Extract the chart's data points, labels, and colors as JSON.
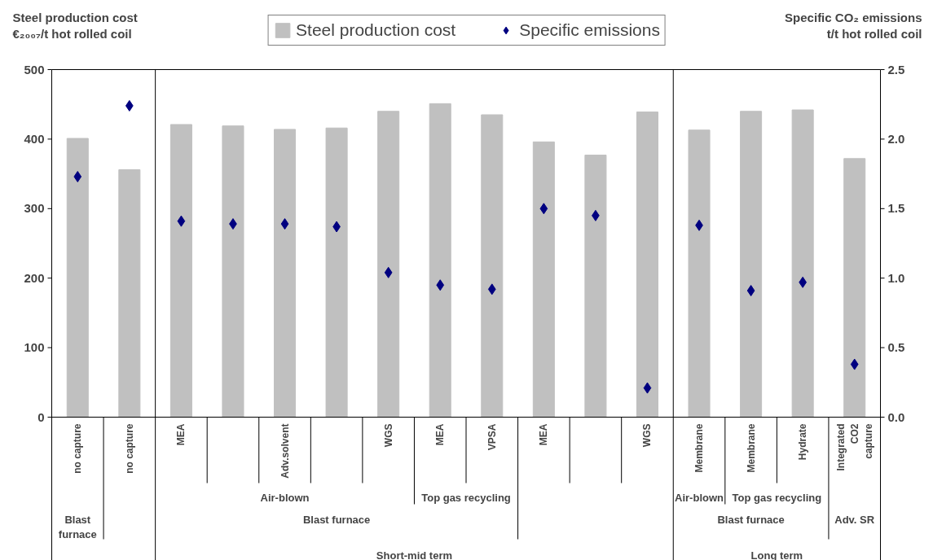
{
  "chart_data": {
    "type": "bar",
    "ylabel": "Steel production cost\n€₂₀₀₇/t hot rolled coil",
    "y2label": "Specific CO₂ emissions\nt/t hot rolled coil",
    "categories": [
      "no capture",
      "no capture",
      "MEA",
      null,
      "Adv.solvent",
      null,
      "WGS",
      "MEA",
      "VPSA",
      "MEA",
      null,
      "WGS",
      "Membrane",
      "Membrane",
      "Hydrate",
      "Integrated CO2 capture"
    ],
    "series": [
      {
        "name": "Steel production cost",
        "color": "#c0c0c0",
        "values": [
          401,
          356,
          421,
          419,
          414,
          416,
          440,
          451,
          435,
          396,
          377,
          439,
          413,
          440,
          442,
          372
        ]
      },
      {
        "name": "Specific emissions",
        "type": "scatter",
        "axis": "y2",
        "color": "#000080",
        "values": [
          1.73,
          2.24,
          1.41,
          1.39,
          1.39,
          1.37,
          1.04,
          0.95,
          0.92,
          1.5,
          1.45,
          0.21,
          1.38,
          0.91,
          0.97,
          0.38
        ]
      }
    ],
    "marker": "diamond",
    "ylim": [
      0,
      500
    ],
    "yticks": [
      0,
      100,
      200,
      300,
      400,
      500
    ],
    "y2lim": [
      0,
      2.5
    ],
    "y2ticks": [
      {
        "value": 0,
        "label": "0.0"
      },
      0.5,
      {
        "value": 1,
        "label": "1.0"
      },
      1.5,
      {
        "value": 2,
        "label": "2.0"
      },
      2.5
    ],
    "legend": "top",
    "annotations": [
      "Air-blown",
      "Top gas recycling",
      "Air-blown",
      "Top gas recycling",
      "Blast furnace",
      "Blast furnace",
      "Blast furnace",
      "Adv. SR",
      "Short-mid term",
      "Long term"
    ]
  }
}
